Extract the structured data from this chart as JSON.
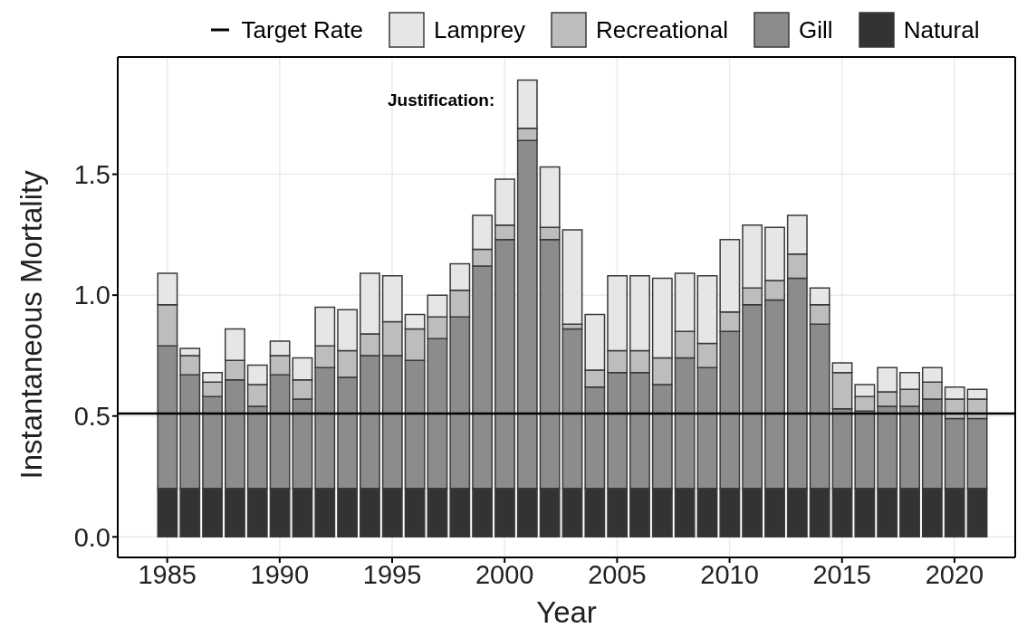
{
  "chart_data": {
    "type": "bar",
    "stacked": true,
    "xlabel": "Year",
    "ylabel": "Instantaneous Mortality",
    "x": [
      1985,
      1986,
      1987,
      1988,
      1989,
      1990,
      1991,
      1992,
      1993,
      1994,
      1995,
      1996,
      1997,
      1998,
      1999,
      2000,
      2001,
      2002,
      2003,
      2004,
      2005,
      2006,
      2007,
      2008,
      2009,
      2010,
      2011,
      2012,
      2013,
      2014,
      2015,
      2016,
      2017,
      2018,
      2019,
      2020,
      2021
    ],
    "series": [
      {
        "name": "Natural",
        "color": "#333333",
        "values": [
          0.2,
          0.2,
          0.2,
          0.2,
          0.2,
          0.2,
          0.2,
          0.2,
          0.2,
          0.2,
          0.2,
          0.2,
          0.2,
          0.2,
          0.2,
          0.2,
          0.2,
          0.2,
          0.2,
          0.2,
          0.2,
          0.2,
          0.2,
          0.2,
          0.2,
          0.2,
          0.2,
          0.2,
          0.2,
          0.2,
          0.2,
          0.2,
          0.2,
          0.2,
          0.2,
          0.2,
          0.2
        ]
      },
      {
        "name": "Gill",
        "color": "#8c8c8c",
        "values": [
          0.59,
          0.47,
          0.38,
          0.45,
          0.34,
          0.47,
          0.37,
          0.5,
          0.46,
          0.55,
          0.55,
          0.53,
          0.62,
          0.71,
          0.92,
          1.03,
          1.44,
          1.03,
          0.66,
          0.42,
          0.48,
          0.48,
          0.43,
          0.54,
          0.5,
          0.65,
          0.76,
          0.78,
          0.87,
          0.68,
          0.33,
          0.32,
          0.34,
          0.34,
          0.37,
          0.29,
          0.29
        ]
      },
      {
        "name": "Recreational",
        "color": "#bdbdbd",
        "values": [
          0.17,
          0.08,
          0.06,
          0.08,
          0.09,
          0.08,
          0.08,
          0.09,
          0.11,
          0.09,
          0.14,
          0.13,
          0.09,
          0.11,
          0.07,
          0.06,
          0.05,
          0.05,
          0.02,
          0.07,
          0.09,
          0.09,
          0.11,
          0.11,
          0.1,
          0.08,
          0.07,
          0.08,
          0.1,
          0.08,
          0.15,
          0.06,
          0.06,
          0.07,
          0.07,
          0.08,
          0.08
        ]
      },
      {
        "name": "Lamprey",
        "color": "#e6e6e6",
        "values": [
          0.13,
          0.03,
          0.04,
          0.13,
          0.08,
          0.06,
          0.09,
          0.16,
          0.17,
          0.25,
          0.19,
          0.06,
          0.09,
          0.11,
          0.14,
          0.19,
          0.2,
          0.25,
          0.39,
          0.23,
          0.31,
          0.31,
          0.33,
          0.24,
          0.28,
          0.3,
          0.26,
          0.22,
          0.16,
          0.07,
          0.04,
          0.05,
          0.1,
          0.07,
          0.06,
          0.05,
          0.04
        ]
      }
    ],
    "ref_lines": [
      {
        "axis": "y",
        "value": 0.51,
        "label": "Target Rate",
        "color": "#000000"
      }
    ],
    "xlim": [
      1982.8,
      2022.7
    ],
    "xticks": [
      1985,
      1990,
      1995,
      2000,
      2005,
      2010,
      2015,
      2020
    ],
    "ylim": [
      -0.085,
      1.985
    ],
    "yticks": [
      {
        "value": 0,
        "label": "0.0"
      },
      {
        "value": 0.5,
        "label": "0.5"
      },
      {
        "value": 1,
        "label": "1.0"
      },
      {
        "value": 1.5,
        "label": "1.5"
      }
    ],
    "grid": true,
    "legend": "top",
    "annotations": [
      "Justification:"
    ]
  }
}
